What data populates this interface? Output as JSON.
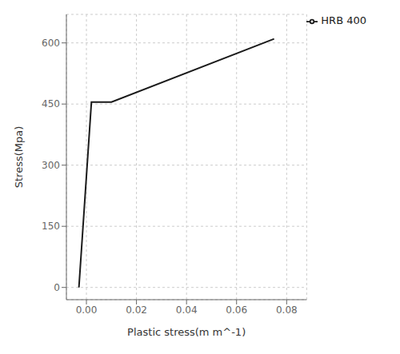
{
  "chart_data": {
    "type": "line",
    "x": [
      -0.003,
      0.002,
      0.01,
      0.075
    ],
    "series": [
      {
        "name": "HRB 400",
        "color": "#1a1a1a",
        "values": [
          0,
          455,
          455,
          610
        ]
      }
    ],
    "xlabel": "Plastic stress(m m^-1)",
    "ylabel": "Stress(Mpa)",
    "xlim": [
      -0.008,
      0.088
    ],
    "ylim": [
      -30,
      670
    ],
    "xticks": [
      {
        "value": 0.0,
        "label": "0.00"
      },
      {
        "value": 0.02,
        "label": "0.02"
      },
      {
        "value": 0.04,
        "label": "0.04"
      },
      {
        "value": 0.06,
        "label": "0.06"
      },
      {
        "value": 0.08,
        "label": "0.08"
      }
    ],
    "yticks": [
      0,
      150,
      300,
      450,
      600
    ],
    "grid": true,
    "legend": "upper right"
  }
}
